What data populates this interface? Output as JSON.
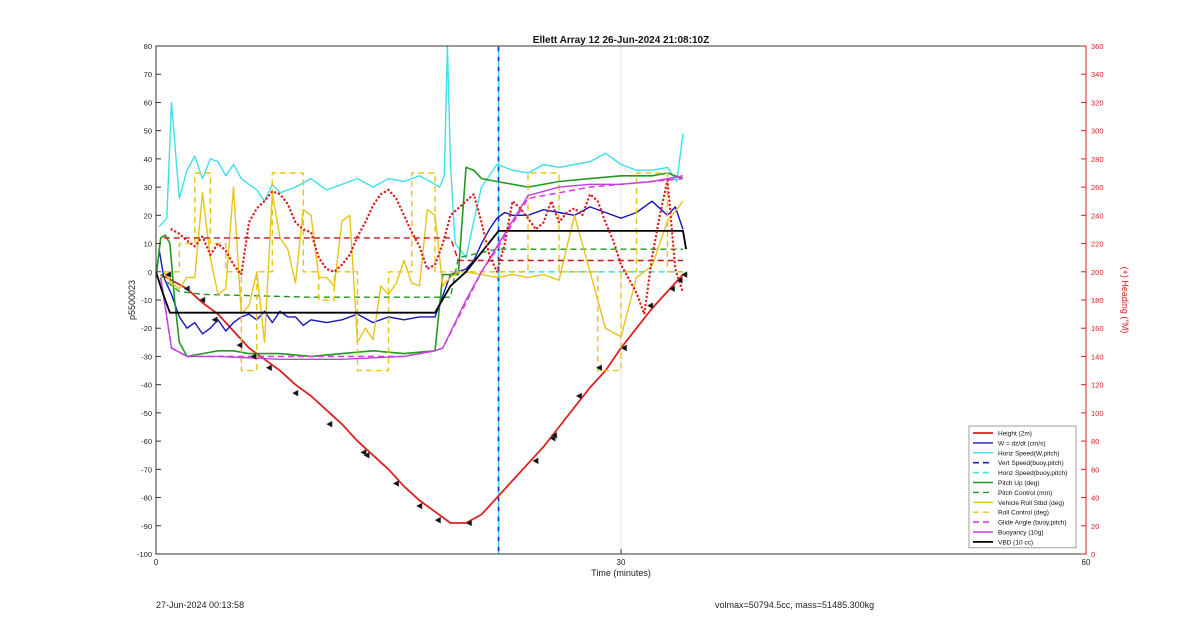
{
  "chart_data": {
    "type": "line",
    "title": "Ellett Array 12 26-Jun-2024 21:08:10Z",
    "xlabel": "Time (minutes)",
    "ylabel": "p5500023",
    "y2label": "(+) Heading (°M)",
    "xlim": [
      0,
      60
    ],
    "ylim": [
      -100,
      80
    ],
    "y2lim": [
      0,
      360
    ],
    "xticks": [
      0,
      30,
      60
    ],
    "yticks": [
      -100,
      -90,
      -80,
      -70,
      -60,
      -50,
      -40,
      -30,
      -20,
      -10,
      0,
      10,
      20,
      30,
      40,
      50,
      60,
      70,
      80
    ],
    "y2ticks": [
      0,
      20,
      40,
      60,
      80,
      100,
      120,
      140,
      160,
      180,
      200,
      220,
      240,
      260,
      280,
      300,
      320,
      340,
      360
    ],
    "grid": true,
    "legend_position": "bottom-right",
    "vlines": [
      {
        "x": 22.1,
        "color": "#1f1fd0",
        "style": "dashed",
        "series": "Vert Speed(buoy,pitch)"
      },
      {
        "x": 22.1,
        "color": "#3fe0e8",
        "style": "dashed",
        "series": "Horiz Speed(buoy,pitch)"
      }
    ],
    "series": [
      {
        "name": "Height (2m)",
        "color": "#dd2020",
        "style": "solid",
        "width": 1.8,
        "x": [
          0.3,
          1,
          2,
          3,
          4,
          5,
          6,
          7,
          8,
          9,
          10,
          11,
          12,
          13,
          14,
          15,
          16,
          17,
          18,
          19,
          20,
          21,
          22,
          23,
          24,
          25,
          26,
          27,
          28,
          29,
          30,
          31,
          32,
          33,
          34
        ],
        "y": [
          -1,
          -3,
          -6,
          -11,
          -15,
          -21,
          -27,
          -31,
          -35,
          -40,
          -44,
          -49,
          -54,
          -60,
          -65,
          -70,
          -76,
          -81,
          -85,
          -89,
          -89,
          -86,
          -80,
          -74,
          -68,
          -62,
          -55,
          -48,
          -41,
          -35,
          -27,
          -20,
          -13,
          -7,
          -1
        ]
      },
      {
        "name": "W = dz/dt (cm/s)",
        "color": "#1616b8",
        "style": "solid",
        "width": 1.4,
        "x": [
          0.2,
          0.5,
          1,
          1.5,
          2,
          2.5,
          3,
          3.5,
          4,
          4.5,
          5,
          5.5,
          6,
          6.5,
          7,
          7.5,
          8,
          8.5,
          9,
          9.5,
          10,
          11,
          12,
          13,
          14,
          15,
          16,
          17,
          18,
          19,
          19.5,
          20,
          20.5,
          21,
          21.5,
          22,
          22.5,
          23,
          24,
          25,
          26,
          27,
          28,
          29,
          30,
          31,
          32,
          33,
          33.5,
          34
        ],
        "y": [
          8,
          -2,
          -8,
          -16,
          -20,
          -18,
          -22,
          -20,
          -17,
          -21,
          -18,
          -16,
          -15,
          -17,
          -14,
          -18,
          -14,
          -16,
          -16,
          -19,
          -17,
          -18,
          -17,
          -15,
          -18,
          -16,
          -17,
          -16,
          -16,
          -1,
          0,
          1,
          4,
          10,
          15,
          19,
          21,
          20,
          20,
          22,
          21,
          20,
          23,
          21,
          19,
          21,
          25,
          20,
          23,
          15
        ]
      },
      {
        "name": "Horiz Speed(W,pitch)",
        "color": "#3ee0ea",
        "style": "solid",
        "width": 1.4,
        "x": [
          0.2,
          0.7,
          1,
          1.5,
          2,
          2.5,
          3,
          3.5,
          4,
          4.5,
          5,
          5.5,
          6,
          6.5,
          7,
          7.5,
          8,
          9,
          10,
          11,
          12,
          13,
          14,
          15,
          16,
          17,
          18,
          18.3,
          18.6,
          18.8,
          19,
          19.3,
          19.6,
          20,
          20.5,
          21,
          22,
          23,
          24,
          25,
          26,
          27,
          28,
          29,
          30,
          31,
          32,
          33,
          33.6,
          34
        ],
        "y": [
          16,
          19,
          60,
          26,
          36,
          41,
          33,
          40,
          39,
          34,
          38,
          33,
          31,
          29,
          25,
          31,
          28,
          30,
          33,
          29,
          31,
          33,
          30,
          33,
          32,
          34,
          31,
          30,
          34,
          85,
          38,
          10,
          8,
          5,
          18,
          30,
          38,
          36,
          35,
          38,
          37,
          38,
          39,
          42,
          38,
          36,
          36,
          37,
          32,
          49
        ]
      },
      {
        "name": "Vert Speed(buoy,pitch)",
        "color": "#1f1fd0",
        "style": "dashed",
        "width": 1.6,
        "x": [],
        "y": []
      },
      {
        "name": "Horiz Speed(buoy,pitch)",
        "color": "#3fe0e8",
        "style": "dashed",
        "width": 1.6,
        "x": [
          22.1,
          34
        ],
        "y": [
          0,
          0
        ]
      },
      {
        "name": "Pitch Up (deg)",
        "color": "#1f9a1f",
        "style": "solid",
        "width": 1.6,
        "x": [
          0,
          0.3,
          0.6,
          0.9,
          1.2,
          1.5,
          2,
          3,
          4,
          5,
          6,
          8,
          10,
          12,
          14,
          16,
          18,
          18.5,
          18.8,
          19,
          19.5,
          20,
          20.5,
          21,
          22,
          24,
          26,
          28,
          30,
          32,
          33,
          34
        ],
        "y": [
          -2,
          12,
          13,
          10,
          -10,
          -25,
          -30,
          -29,
          -28,
          -28,
          -29,
          -29,
          -30,
          -29,
          -28,
          -29,
          -28,
          -1,
          -1,
          -1,
          -1,
          37,
          36,
          33,
          32,
          30,
          32,
          33,
          34,
          34,
          35,
          33
        ]
      },
      {
        "name": "Pitch Control (mm)",
        "color": "#1f9a1f",
        "style": "dashed",
        "width": 1.4,
        "x": [
          0.3,
          0.8,
          1.5,
          3,
          10,
          19,
          19.5,
          22,
          34
        ],
        "y": [
          -1,
          -4,
          -7,
          -8,
          -9,
          -9,
          5,
          8,
          8
        ]
      },
      {
        "name": "Vehicle Roll Stbd (deg)",
        "color": "#e8c417",
        "style": "solid",
        "width": 1.4,
        "x": [
          0.5,
          1,
          1.5,
          2,
          2.5,
          3,
          3.5,
          4,
          4.5,
          5,
          5.5,
          6,
          6.5,
          7,
          7.5,
          8,
          8.5,
          9,
          9.5,
          10,
          10.5,
          11,
          11.5,
          12,
          12.5,
          13,
          13.5,
          14,
          14.5,
          15,
          15.5,
          16,
          16.5,
          17,
          17.5,
          18,
          18.5,
          19,
          19.5,
          20,
          21,
          22,
          23,
          24,
          25,
          26,
          27,
          28,
          29,
          30,
          31,
          32,
          33,
          34
        ],
        "y": [
          0,
          -4,
          -6,
          -2,
          -2,
          28,
          5,
          -8,
          -6,
          30,
          -15,
          -12,
          0,
          -25,
          28,
          12,
          8,
          -4,
          22,
          20,
          -2,
          -2,
          -5,
          18,
          20,
          -25,
          -20,
          -24,
          -5,
          -8,
          -4,
          4,
          -4,
          -5,
          22,
          20,
          -5,
          -2,
          0,
          0,
          -1,
          -2,
          -1,
          -2,
          -1,
          -3,
          20,
          0,
          -20,
          -23,
          -2,
          2,
          18,
          25
        ]
      },
      {
        "name": "Roll Control (deg)",
        "color": "#e8c417",
        "style": "dashed",
        "width": 1.4,
        "x": [
          0.5,
          1.5,
          1.5,
          2.5,
          2.5,
          3.5,
          3.5,
          4.5,
          4.5,
          5.5,
          5.5,
          6.5,
          6.5,
          7.5,
          7.5,
          9.5,
          9.5,
          10.5,
          10.5,
          11.5,
          11.5,
          13,
          13,
          15,
          15,
          16.5,
          16.5,
          18,
          18,
          19,
          19,
          22,
          22,
          24,
          24,
          26,
          26,
          27,
          27,
          28.5,
          28.5,
          30,
          30,
          31,
          31,
          33,
          33,
          34
        ],
        "y": [
          0,
          0,
          10,
          10,
          35,
          35,
          10,
          10,
          0,
          0,
          -35,
          -35,
          0,
          0,
          35,
          35,
          0,
          0,
          -10,
          -10,
          0,
          0,
          -35,
          -35,
          0,
          0,
          35,
          35,
          0,
          0,
          0,
          0,
          0,
          0,
          35,
          35,
          0,
          0,
          0,
          0,
          -35,
          -35,
          0,
          0,
          35,
          35,
          0,
          0
        ]
      },
      {
        "name": "Glide Angle (buoy,pitch)",
        "color": "#e040e0",
        "style": "dashed",
        "width": 1.6,
        "x": [
          0.3,
          1,
          2,
          4,
          8,
          12,
          16,
          18,
          18.5,
          20,
          21,
          22,
          24,
          26,
          28,
          30,
          32,
          34
        ],
        "y": [
          -2,
          -27,
          -30,
          -30,
          -30,
          -30,
          -30,
          -28,
          -27,
          -11,
          0,
          8,
          26,
          28,
          30,
          31,
          32,
          33
        ]
      },
      {
        "name": "Buoyancy (10g)",
        "color": "#c040e0",
        "style": "solid",
        "width": 1.4,
        "x": [
          0.3,
          1,
          2,
          4,
          8,
          12,
          16,
          18,
          18.5,
          20,
          21,
          22,
          24,
          26,
          28,
          30,
          32,
          34
        ],
        "y": [
          -2,
          -27,
          -30,
          -30,
          -31,
          -31,
          -30,
          -28,
          -27,
          -10,
          0,
          9,
          27,
          30,
          31,
          31,
          32,
          34
        ]
      },
      {
        "name": "VBD (10 cc)",
        "color": "#000000",
        "style": "solid",
        "width": 1.8,
        "x": [
          0,
          0.4,
          0.9,
          18,
          19,
          20,
          22.1,
          34,
          34.2
        ],
        "y": [
          0,
          -7,
          -14.5,
          -14.5,
          -5,
          0,
          14.5,
          14.5,
          8
        ]
      },
      {
        "name": "Heading",
        "axis": "right",
        "color": "#dd2020",
        "style": "dotted",
        "width": 2.4,
        "x": [
          1,
          1.5,
          2,
          2.5,
          3,
          3.5,
          4,
          4.5,
          5,
          5.5,
          6,
          6.5,
          7,
          7.5,
          8,
          8.5,
          9,
          9.5,
          10,
          10.5,
          11,
          11.5,
          12,
          12.5,
          13,
          13.5,
          14,
          14.5,
          15,
          15.5,
          16,
          16.5,
          17,
          17.5,
          18,
          18.5,
          19,
          19.5,
          20,
          20.5,
          21,
          21.5,
          22,
          22.5,
          23,
          23.5,
          24,
          24.5,
          25,
          25.5,
          26,
          26.5,
          27,
          27.5,
          28,
          28.5,
          29,
          29.5,
          30,
          30.5,
          31,
          31.5,
          32,
          32.5,
          33,
          33.5,
          34
        ],
        "y": [
          230,
          227,
          222,
          218,
          225,
          212,
          220,
          215,
          205,
          198,
          235,
          245,
          250,
          257,
          255,
          248,
          235,
          230,
          228,
          210,
          202,
          200,
          205,
          212,
          225,
          235,
          247,
          255,
          258,
          252,
          240,
          228,
          218,
          202,
          205,
          220,
          240,
          245,
          250,
          255,
          235,
          212,
          200,
          220,
          250,
          245,
          238,
          230,
          235,
          250,
          235,
          242,
          245,
          240,
          255,
          250,
          235,
          222,
          205,
          195,
          185,
          170,
          210,
          240,
          265,
          202,
          185
        ]
      },
      {
        "name": "Heading (setpoint)",
        "axis": "right",
        "color": "#c01818",
        "style": "dashed",
        "width": 1.4,
        "x": [
          0.5,
          19,
          19.5,
          34
        ],
        "y": [
          224,
          224,
          208,
          208
        ]
      }
    ],
    "legend": [
      "Height (2m)",
      "W = dz/dt (cm/s)",
      "Horiz Speed(W,pitch)",
      "Vert Speed(buoy,pitch)",
      "Horiz Speed(buoy,pitch)",
      "Pitch Up (deg)",
      "Pitch Control (mm)",
      "Vehicle Roll Stbd (deg)",
      "Roll Control (deg)",
      "Glide Angle (buoy,pitch)",
      "Buoyancy (10g)",
      "VBD (10 cc)"
    ],
    "markers": {
      "color": "#111111",
      "x": [
        0.8,
        2,
        3,
        3.8,
        5.4,
        6.3,
        7.3,
        9,
        11.2,
        13.4,
        13.6,
        15.5,
        17,
        18.2,
        20.2,
        24.5,
        25.6,
        25.7,
        27.3,
        28.6,
        30.2,
        31.9,
        33.3,
        33.8,
        34.1
      ],
      "y": [
        -1,
        -6,
        -10,
        -17,
        -26,
        -30,
        -34,
        -43,
        -54,
        -64,
        -65,
        -75,
        -83,
        -88,
        -89,
        -67,
        -59,
        -58,
        -44,
        -34,
        -27,
        -12,
        -6,
        -3,
        -1
      ]
    }
  },
  "footer": {
    "left": "27-Jun-2024 00:13:58",
    "right": "volmax=50794.5cc, mass=51485.300kg"
  }
}
